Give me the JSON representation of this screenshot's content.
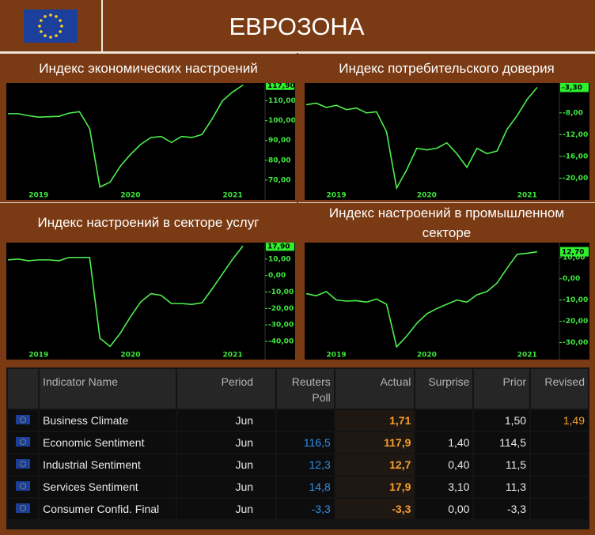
{
  "header": {
    "title": "ЕВРОЗОНА"
  },
  "chart_data": [
    {
      "type": "line",
      "title": "Индекс экономических настроений",
      "color": "#4df04d",
      "categories": [
        null,
        null,
        null,
        "2019",
        null,
        null,
        null,
        null,
        null,
        null,
        null,
        null,
        "2020",
        null,
        null,
        null,
        null,
        null,
        null,
        null,
        null,
        null,
        "2021",
        null
      ],
      "values": [
        103.5,
        103.5,
        102.5,
        101.8,
        102,
        102.2,
        103.8,
        104.5,
        96,
        66.5,
        69,
        77,
        83,
        88,
        91.5,
        92,
        89,
        92,
        91.5,
        93,
        101,
        110,
        114.5,
        117.9
      ],
      "value_labels": [
        null,
        null,
        null,
        null,
        null,
        null,
        null,
        null,
        null,
        null,
        null,
        null,
        null,
        null,
        null,
        null,
        null,
        null,
        null,
        null,
        null,
        null,
        null,
        "117,90"
      ],
      "ylim": [
        60,
        119
      ],
      "yticks": [
        {
          "value": 70,
          "label": "70,00"
        },
        {
          "value": 80,
          "label": "80,00"
        },
        {
          "value": 90,
          "label": "90,00"
        },
        {
          "value": 100,
          "label": "100,00"
        },
        {
          "value": 110,
          "label": "110,00"
        }
      ]
    },
    {
      "type": "line",
      "title": "Индекс потребительского доверия",
      "color": "#4df04d",
      "categories": [
        null,
        null,
        null,
        "2019",
        null,
        null,
        null,
        null,
        null,
        null,
        null,
        null,
        "2020",
        null,
        null,
        null,
        null,
        null,
        null,
        null,
        null,
        null,
        "2021",
        null
      ],
      "values": [
        -6.5,
        -6.2,
        -7,
        -6.6,
        -7.4,
        -7.1,
        -8,
        -7.8,
        -11.5,
        -21.8,
        -18.5,
        -14.5,
        -14.8,
        -14.5,
        -13.5,
        -15.5,
        -18,
        -14.5,
        -15.5,
        -15,
        -11,
        -8.5,
        -5.5,
        -3.3
      ],
      "value_labels": [
        null,
        null,
        null,
        null,
        null,
        null,
        null,
        null,
        null,
        null,
        null,
        null,
        null,
        null,
        null,
        null,
        null,
        null,
        null,
        null,
        null,
        null,
        null,
        "-3,30"
      ],
      "ylim": [
        -24,
        -2.5
      ],
      "yticks": [
        {
          "value": -20,
          "label": "-20,00"
        },
        {
          "value": -16,
          "label": "-16,00"
        },
        {
          "value": -12,
          "label": "-12,00"
        },
        {
          "value": -8,
          "label": "-8,00"
        }
      ]
    },
    {
      "type": "line",
      "title": "Индекс настроений в секторе услуг",
      "color": "#4df04d",
      "categories": [
        null,
        null,
        null,
        "2019",
        null,
        null,
        null,
        null,
        null,
        null,
        null,
        null,
        "2020",
        null,
        null,
        null,
        null,
        null,
        null,
        null,
        null,
        null,
        "2021",
        null
      ],
      "values": [
        9.5,
        10,
        9,
        9.5,
        9.5,
        9,
        11,
        11,
        11,
        -38,
        -43,
        -35,
        -25,
        -16,
        -11,
        -12,
        -17,
        -17,
        -17.5,
        -16.5,
        -8,
        1,
        10,
        17.9
      ],
      "value_labels": [
        null,
        null,
        null,
        null,
        null,
        null,
        null,
        null,
        null,
        null,
        null,
        null,
        null,
        null,
        null,
        null,
        null,
        null,
        null,
        null,
        null,
        null,
        null,
        "17,90"
      ],
      "ylim": [
        -51,
        20
      ],
      "yticks": [
        {
          "value": -40,
          "label": "-40,00"
        },
        {
          "value": -30,
          "label": "-30,00"
        },
        {
          "value": -20,
          "label": "-20,00"
        },
        {
          "value": -10,
          "label": "-10,00"
        },
        {
          "value": 0,
          "label": "0,00"
        },
        {
          "value": 10,
          "label": "10,00"
        }
      ]
    },
    {
      "type": "line",
      "title": "Индекс настроений в промышленном секторе",
      "color": "#4df04d",
      "categories": [
        null,
        null,
        null,
        "2019",
        null,
        null,
        null,
        null,
        null,
        null,
        null,
        null,
        "2020",
        null,
        null,
        null,
        null,
        null,
        null,
        null,
        null,
        null,
        "2021",
        null
      ],
      "values": [
        -7,
        -8,
        -6,
        -10,
        -10.5,
        -10.3,
        -11,
        -9.5,
        -12,
        -32,
        -27,
        -21,
        -16.5,
        -14,
        -12,
        -10,
        -11,
        -7.5,
        -6,
        -2,
        5,
        11.5,
        12,
        12.7
      ],
      "value_labels": [
        null,
        null,
        null,
        null,
        null,
        null,
        null,
        null,
        null,
        null,
        null,
        null,
        null,
        null,
        null,
        null,
        null,
        null,
        null,
        null,
        null,
        null,
        null,
        "12,70"
      ],
      "ylim": [
        -38,
        17
      ],
      "yticks": [
        {
          "value": -30,
          "label": "-30,00"
        },
        {
          "value": -20,
          "label": "-20,00"
        },
        {
          "value": -10,
          "label": "-10,00"
        },
        {
          "value": 0,
          "label": "0,00"
        },
        {
          "value": 10,
          "label": "10,00"
        }
      ]
    }
  ],
  "table": {
    "columns": [
      "Indicator Name",
      "Period",
      "Reuters Poll",
      "Actual",
      "Surprise",
      "Prior",
      "Revised"
    ],
    "rows": [
      [
        "Business Climate",
        "Jun",
        null,
        "1,71",
        null,
        "1,50",
        "1,49"
      ],
      [
        "Economic Sentiment",
        "Jun",
        "116,5",
        "117,9",
        "1,40",
        "114,5",
        null
      ],
      [
        "Industrial Sentiment",
        "Jun",
        "12,3",
        "12,7",
        "0,40",
        "11,5",
        null
      ],
      [
        "Services Sentiment",
        "Jun",
        "14,8",
        "17,9",
        "3,10",
        "11,3",
        null
      ],
      [
        "Consumer Confid. Final",
        "Jun",
        "-3,3",
        "-3,3",
        "0,00",
        "-3,3",
        null
      ]
    ]
  }
}
